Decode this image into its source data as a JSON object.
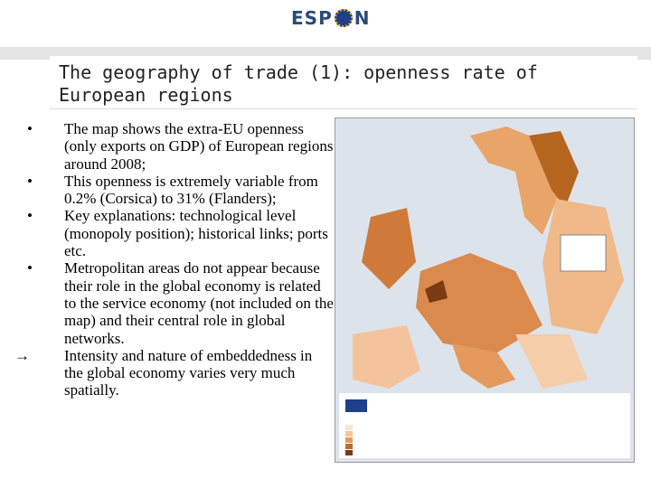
{
  "header": {
    "logo_left": "ESP",
    "logo_right": "N"
  },
  "title": "The geography of trade (1): openness rate of European regions",
  "bullets": [
    "The map shows the extra-EU openness (only exports on GDP) of European regions around 2008;",
    "This openness is extremely variable from 0.2% (Corsica) to 31% (Flanders);",
    "Key explanations: technological level (monopoly position); historical links; ports etc.",
    "Metropolitan areas do not appear because their role in the global economy is related to the service economy (not included on the map) and their central role in global networks."
  ],
  "conclusion": "Intensity and nature of embeddedness in the global economy varies very much spatially."
}
